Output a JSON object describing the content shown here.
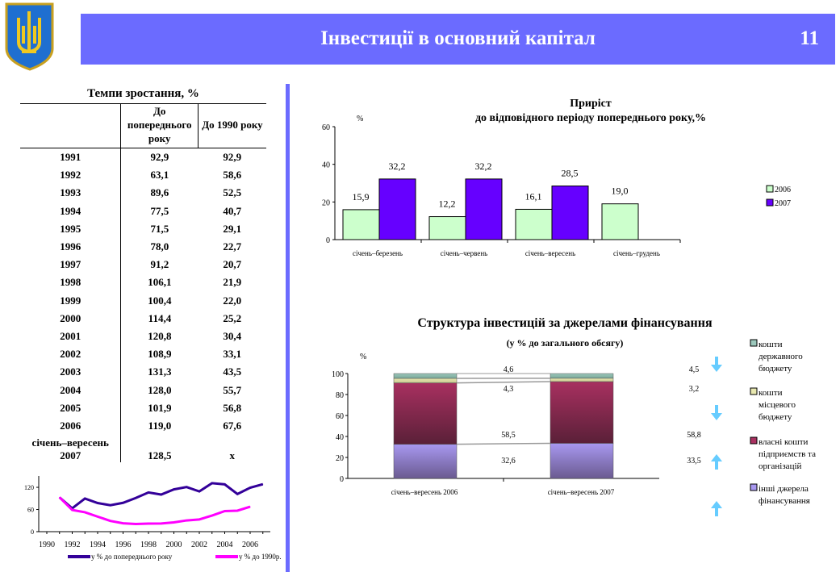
{
  "header": {
    "title": "Інвестиції в основний капітал",
    "page_number": "11"
  },
  "table": {
    "title": "Темпи зростання, %",
    "columns": [
      "",
      "До попереднього року",
      "До 1990 року"
    ],
    "rows": [
      [
        "1991",
        "92,9",
        "92,9"
      ],
      [
        "1992",
        "63,1",
        "58,6"
      ],
      [
        "1993",
        "89,6",
        "52,5"
      ],
      [
        "1994",
        "77,5",
        "40,7"
      ],
      [
        "1995",
        "71,5",
        "29,1"
      ],
      [
        "1996",
        "78,0",
        "22,7"
      ],
      [
        "1997",
        "91,2",
        "20,7"
      ],
      [
        "1998",
        "106,1",
        "21,9"
      ],
      [
        "1999",
        "100,4",
        "22,0"
      ],
      [
        "2000",
        "114,4",
        "25,2"
      ],
      [
        "2001",
        "120,8",
        "30,4"
      ],
      [
        "2002",
        "108,9",
        "33,1"
      ],
      [
        "2003",
        "131,3",
        "43,5"
      ],
      [
        "2004",
        "128,0",
        "55,7"
      ],
      [
        "2005",
        "101,9",
        "56,8"
      ],
      [
        "2006",
        "119,0",
        "67,6"
      ]
    ],
    "last_row": {
      "label_line1": "січень–вересень",
      "label_line2": "2007",
      "v1": "128,5",
      "v2": "x"
    }
  },
  "chart_data": [
    {
      "type": "line",
      "title": "",
      "x": [
        1991,
        1992,
        1993,
        1994,
        1995,
        1996,
        1997,
        1998,
        1999,
        2000,
        2001,
        2002,
        2003,
        2004,
        2005,
        2006,
        2007
      ],
      "series": [
        {
          "name": "у % до попереднього року",
          "color": "#330099",
          "values": [
            92.9,
            63.1,
            89.6,
            77.5,
            71.5,
            78.0,
            91.2,
            106.1,
            100.4,
            114.4,
            120.8,
            108.9,
            131.3,
            128.0,
            101.9,
            119.0,
            128.5
          ]
        },
        {
          "name": "у % до 1990р.",
          "color": "#ff00ff",
          "values": [
            92.9,
            58.6,
            52.5,
            40.7,
            29.1,
            22.7,
            20.7,
            21.9,
            22.0,
            25.2,
            30.4,
            33.1,
            43.5,
            55.7,
            56.8,
            67.6,
            null
          ]
        }
      ],
      "xticks": [
        "1990",
        "1992",
        "1994",
        "1996",
        "1998",
        "2000",
        "2002",
        "2004",
        "2006"
      ],
      "yticks": [
        "0",
        "60",
        "120"
      ],
      "ylim": [
        0,
        150
      ],
      "xlim": [
        1990,
        2007.5
      ],
      "legend": "bottom"
    },
    {
      "type": "bar",
      "title": "Приріст",
      "subtitle": "до відповідного періоду попереднього року,%",
      "ylabel": "%",
      "categories": [
        "січень–березень",
        "січень–червень",
        "січень–вересень",
        "січень–грудень"
      ],
      "series": [
        {
          "name": "2006",
          "color": "#ccffcc",
          "values": [
            15.9,
            12.2,
            16.1,
            19.0
          ],
          "labels": [
            "15,9",
            "12,2",
            "16,1",
            "19,0"
          ]
        },
        {
          "name": "2007",
          "color": "#6600ff",
          "values": [
            32.2,
            32.2,
            28.5,
            null
          ],
          "labels": [
            "32,2",
            "32,2",
            "28,5",
            ""
          ]
        }
      ],
      "yticks": [
        "0",
        "20",
        "40",
        "60"
      ],
      "ylim": [
        0,
        60
      ],
      "legend": "right"
    },
    {
      "type": "bar",
      "stacked": true,
      "title": "Структура інвестицій за джерелами фінансування",
      "subtitle": "(у % до загального обсягу)",
      "ylabel": "%",
      "categories": [
        "січень–вересень 2006",
        "січень–вересень 2007"
      ],
      "series": [
        {
          "name": "інші джерела фінансування",
          "color": "#a898f0",
          "values": [
            32.6,
            33.5
          ],
          "labels": [
            "32,6",
            "33,5"
          ],
          "trend": "up"
        },
        {
          "name": "власні кошти підприємств та організацій",
          "color": "#a83060",
          "values": [
            58.5,
            58.8
          ],
          "labels": [
            "58,5",
            "58,8"
          ],
          "trend": "up"
        },
        {
          "name": "кошти місцевого бюджету",
          "color": "#e8e8b0",
          "values": [
            4.3,
            3.2
          ],
          "labels": [
            "4,3",
            "3,2"
          ],
          "trend": "down"
        },
        {
          "name": "кошти державного бюджету",
          "color": "#9cc8bc",
          "values": [
            4.6,
            4.5
          ],
          "labels": [
            "4,6",
            "4,5"
          ],
          "trend": "down"
        }
      ],
      "yticks": [
        "0",
        "20",
        "40",
        "60",
        "80",
        "100"
      ],
      "ylim": [
        0,
        100
      ],
      "legend": "right"
    }
  ]
}
